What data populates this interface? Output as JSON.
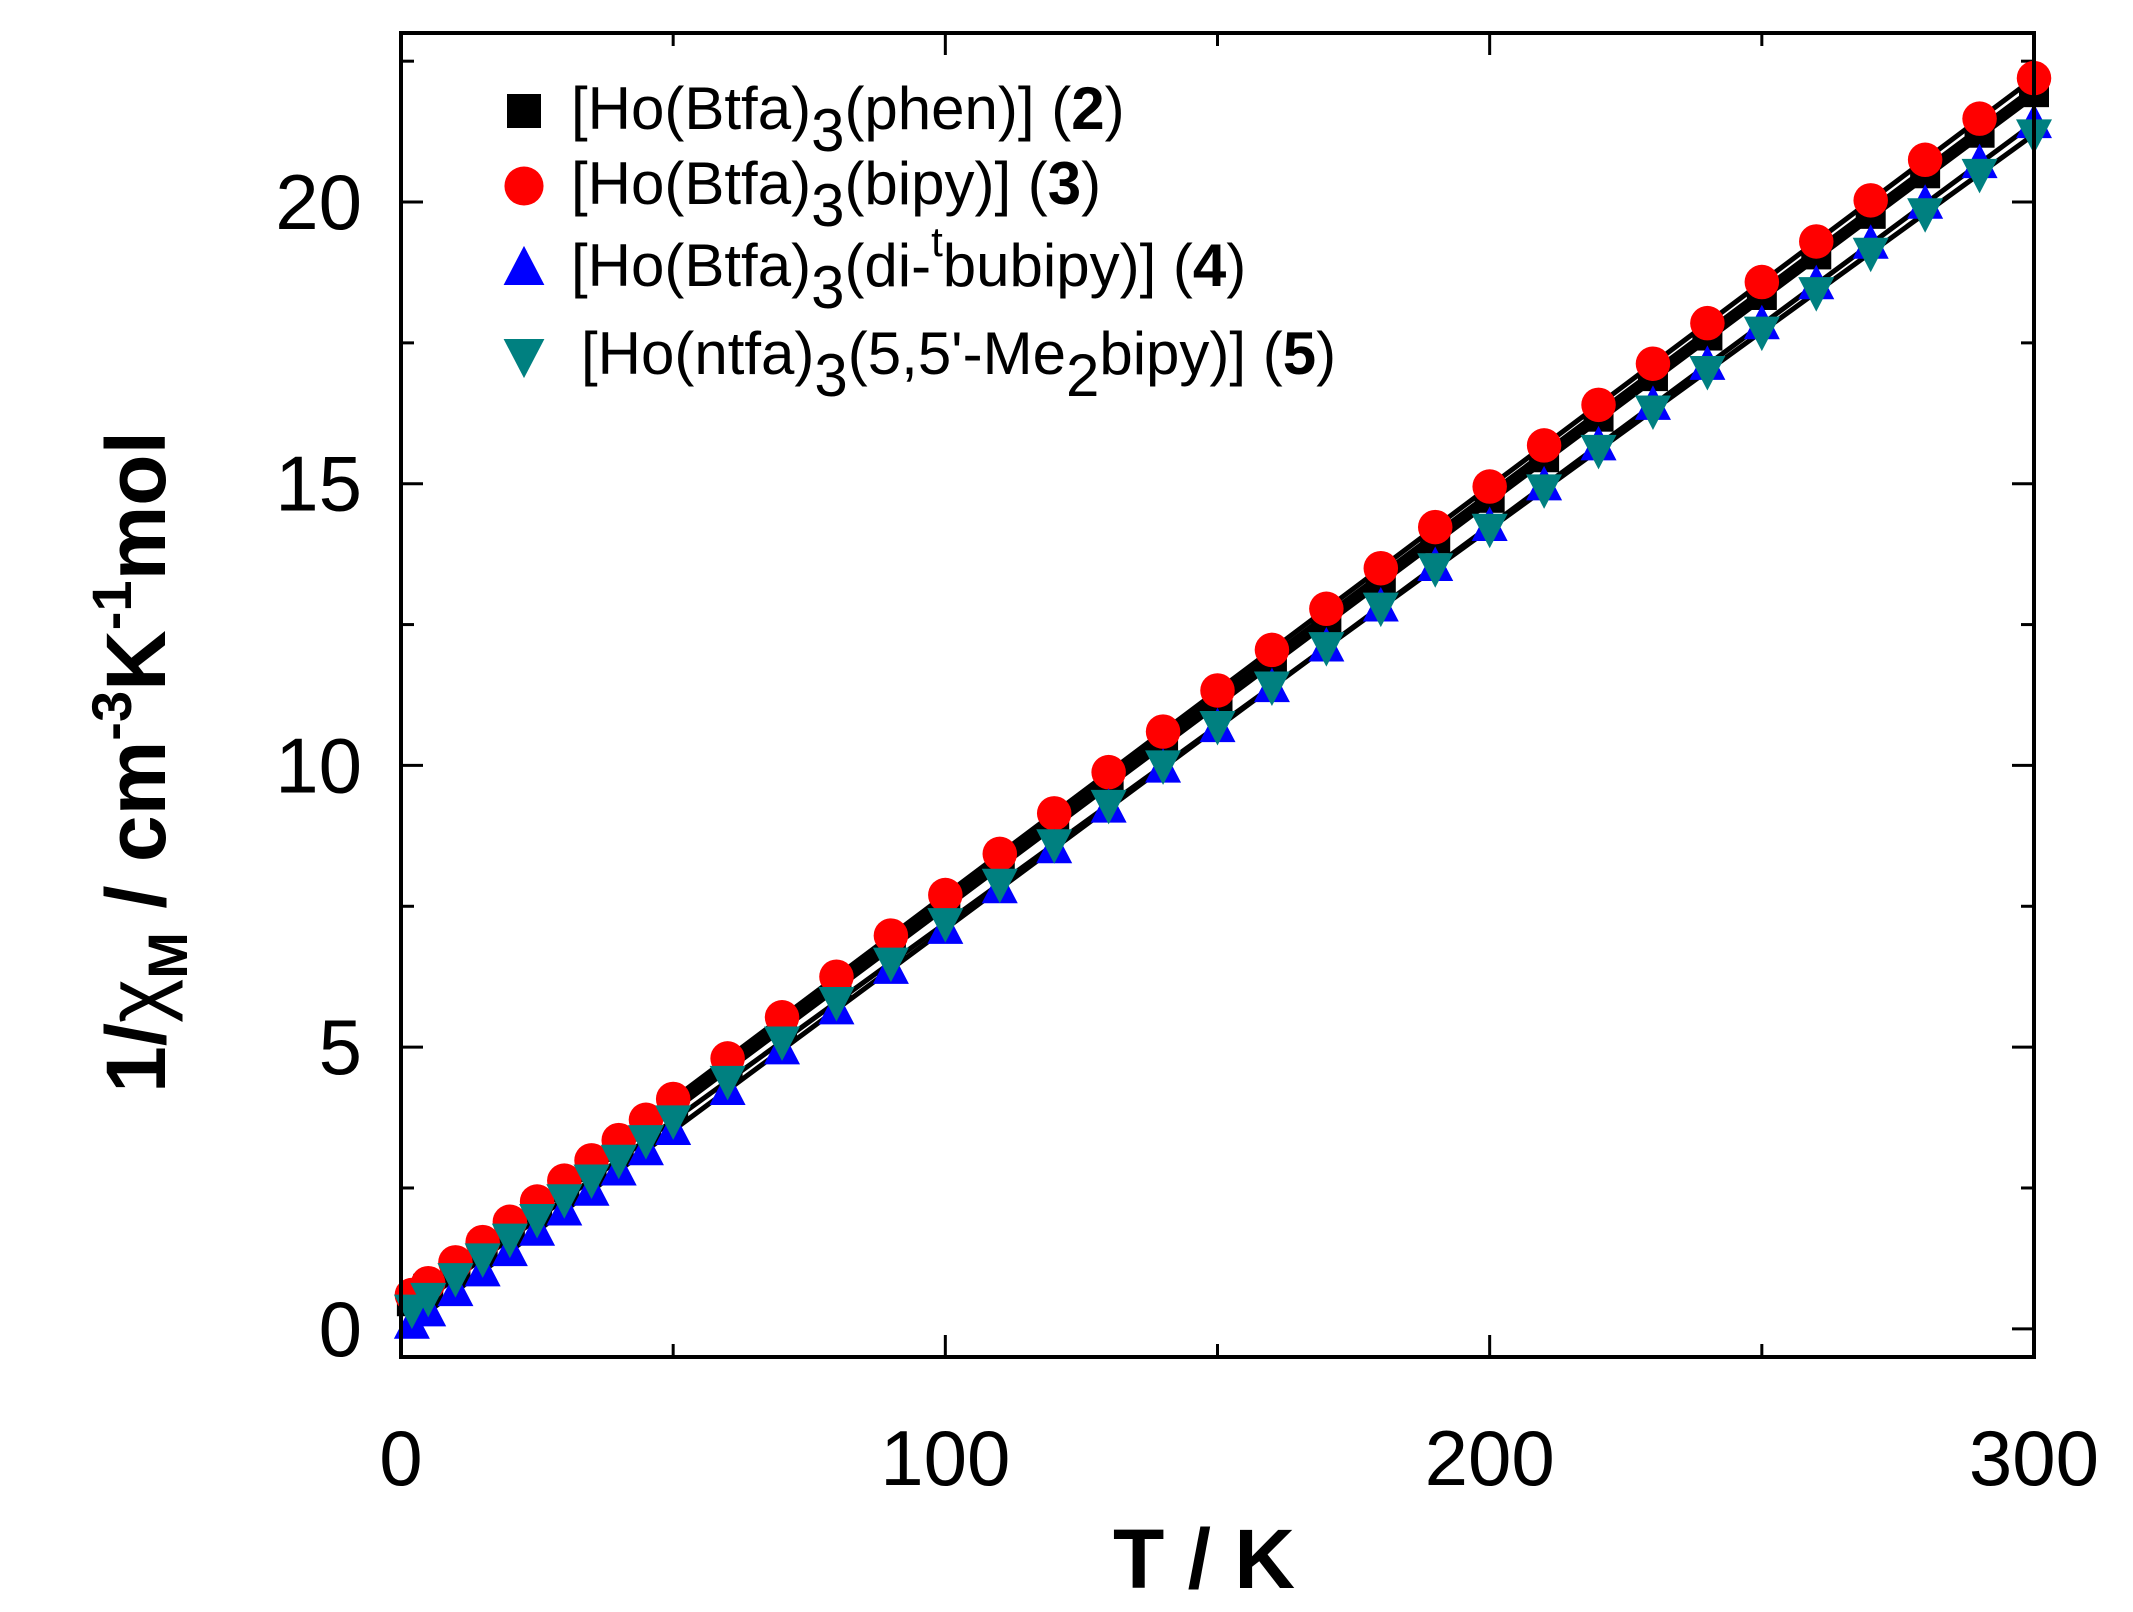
{
  "chart_data": {
    "type": "scatter",
    "xlabel": "T / K",
    "ylabel": {
      "prefix": "1/",
      "chi": "χ",
      "chi_sub": "M",
      "unit_main": " / cm",
      "exp1": "-3",
      "unit_k": "K",
      "exp2": "-1",
      "unit_mol": "mol"
    },
    "xlim": [
      0,
      300
    ],
    "ylim": [
      -0.5,
      23
    ],
    "xticks": [
      0,
      100,
      200,
      300
    ],
    "yticks": [
      0,
      5,
      10,
      15,
      20
    ],
    "grid": false,
    "legend_placement": "top-left",
    "x": [
      2,
      5,
      10,
      15,
      20,
      25,
      30,
      35,
      40,
      45,
      50,
      60,
      70,
      80,
      90,
      100,
      110,
      120,
      130,
      140,
      150,
      160,
      170,
      180,
      190,
      200,
      210,
      220,
      230,
      240,
      250,
      260,
      270,
      280,
      290,
      300
    ],
    "series": [
      {
        "name": "[Ho(Btfa)3(phen)] (2)",
        "label_parts": [
          "[Ho(Btfa)",
          "3",
          "(phen)] (",
          "2",
          ")"
        ],
        "marker": "square",
        "color": "#000000",
        "values": [
          0.49,
          0.71,
          1.07,
          1.43,
          1.79,
          2.15,
          2.51,
          2.87,
          3.23,
          3.59,
          3.95,
          4.67,
          5.39,
          6.11,
          6.83,
          7.55,
          8.27,
          8.99,
          9.71,
          10.43,
          11.15,
          11.87,
          12.59,
          13.31,
          14.03,
          14.75,
          15.47,
          16.19,
          16.91,
          17.63,
          18.35,
          19.07,
          19.79,
          20.51,
          21.23,
          21.95
        ]
      },
      {
        "name": "[Ho(Btfa)3(bipy)] (3)",
        "label_parts": [
          "[Ho(Btfa)",
          "3",
          "(bipy)] (",
          "3",
          ")"
        ],
        "marker": "circle",
        "color": "#ff0000",
        "values": [
          0.6,
          0.81,
          1.18,
          1.54,
          1.9,
          2.26,
          2.63,
          2.99,
          3.35,
          3.71,
          4.08,
          4.8,
          5.53,
          6.25,
          6.98,
          7.7,
          8.43,
          9.15,
          9.88,
          10.6,
          11.33,
          12.05,
          12.78,
          13.5,
          14.23,
          14.95,
          15.68,
          16.4,
          17.13,
          17.85,
          18.58,
          19.3,
          20.03,
          20.75,
          21.48,
          22.2
        ]
      },
      {
        "name": "[Ho(Btfa)3(di-tbubipy)] (4)",
        "label_parts": [
          "[Ho(Btfa)",
          "3",
          "(di-",
          "t",
          "bubipy)] (",
          "4",
          ")"
        ],
        "marker": "triangle-up",
        "color": "#0000ff",
        "values": [
          0.09,
          0.31,
          0.67,
          1.02,
          1.38,
          1.74,
          2.1,
          2.45,
          2.81,
          3.17,
          3.53,
          4.24,
          4.96,
          5.67,
          6.39,
          7.1,
          7.82,
          8.53,
          9.25,
          9.96,
          10.68,
          11.39,
          12.11,
          12.82,
          13.54,
          14.25,
          14.97,
          15.68,
          16.4,
          17.11,
          17.83,
          18.54,
          19.26,
          19.97,
          20.69,
          21.4
        ]
      },
      {
        "name": "[Ho(ntfa)3(5,5'-Me2bipy)] (5)",
        "label_parts": [
          "[Ho(ntfa)",
          "3",
          "(5,5'-Me",
          "2",
          "bipy)] (",
          "5",
          ")"
        ],
        "marker": "triangle-down",
        "color": "#008080",
        "values": [
          0.34,
          0.55,
          0.9,
          1.25,
          1.6,
          1.95,
          2.3,
          2.65,
          3.0,
          3.35,
          3.7,
          4.4,
          5.1,
          5.8,
          6.5,
          7.2,
          7.9,
          8.6,
          9.3,
          10.0,
          10.7,
          11.4,
          12.1,
          12.8,
          13.5,
          14.2,
          14.9,
          15.6,
          16.3,
          17.0,
          17.7,
          18.4,
          19.1,
          19.8,
          20.5,
          21.2
        ]
      }
    ],
    "fit_line_color": "#000000"
  }
}
